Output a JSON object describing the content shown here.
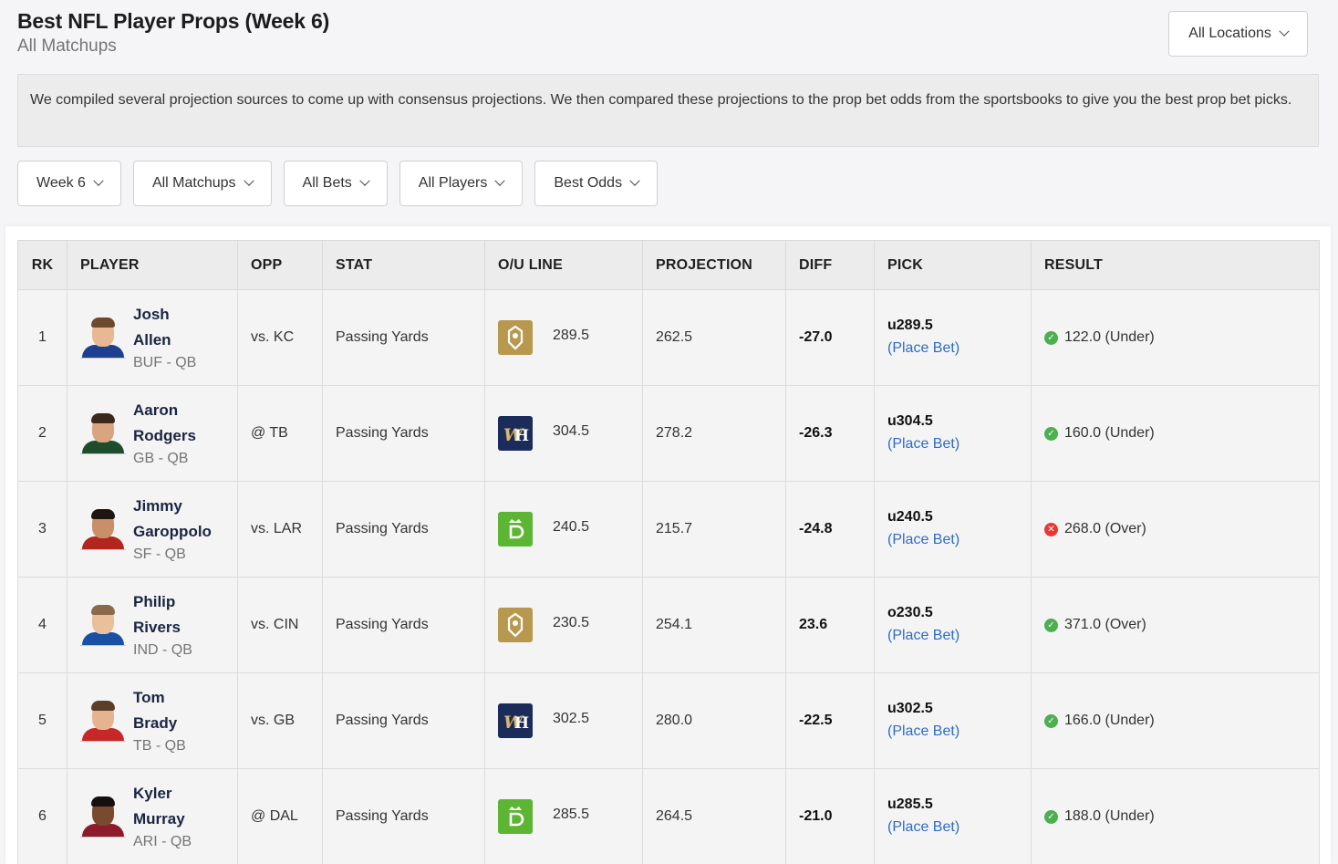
{
  "header": {
    "title": "Best NFL Player Props (Week 6)",
    "subtitle": "All Matchups",
    "location_label": "All Locations"
  },
  "description": "We compiled several projection sources to come up with consensus projections. We then compared these projections to the prop bet odds from the sportsbooks to give you the best prop bet picks.",
  "filters": {
    "week": "Week 6",
    "matchups": "All Matchups",
    "bets": "All Bets",
    "players": "All Players",
    "odds": "Best Odds"
  },
  "table": {
    "headers": {
      "rk": "RK",
      "player": "PLAYER",
      "opp": "OPP",
      "stat": "STAT",
      "ou": "O/U LINE",
      "projection": "PROJECTION",
      "diff": "DIFF",
      "pick": "PICK",
      "result": "RESULT"
    },
    "rows": [
      {
        "rk": "1",
        "first": "Josh",
        "last": "Allen",
        "team": "BUF - QB",
        "opp": "vs. KC",
        "stat": "Passing Yards",
        "book": "betmgm-logo",
        "line": "289.5",
        "projection": "262.5",
        "diff": "-27.0",
        "pick": "u289.5",
        "place": "(Place Bet)",
        "result": "122.0 (Under)",
        "result_status": "win"
      },
      {
        "rk": "2",
        "first": "Aaron",
        "last": "Rodgers",
        "team": "GB - QB",
        "opp": "@ TB",
        "stat": "Passing Yards",
        "book": "williamhill-logo",
        "line": "304.5",
        "projection": "278.2",
        "diff": "-26.3",
        "pick": "u304.5",
        "place": "(Place Bet)",
        "result": "160.0 (Under)",
        "result_status": "win"
      },
      {
        "rk": "3",
        "first": "Jimmy",
        "last": "Garoppolo",
        "team": "SF - QB",
        "opp": "vs. LAR",
        "stat": "Passing Yards",
        "book": "draftkings-logo",
        "line": "240.5",
        "projection": "215.7",
        "diff": "-24.8",
        "pick": "u240.5",
        "place": "(Place Bet)",
        "result": "268.0 (Over)",
        "result_status": "loss"
      },
      {
        "rk": "4",
        "first": "Philip",
        "last": "Rivers",
        "team": "IND - QB",
        "opp": "vs. CIN",
        "stat": "Passing Yards",
        "book": "betmgm-logo",
        "line": "230.5",
        "projection": "254.1",
        "diff": "23.6",
        "pick": "o230.5",
        "place": "(Place Bet)",
        "result": "371.0 (Over)",
        "result_status": "win"
      },
      {
        "rk": "5",
        "first": "Tom",
        "last": "Brady",
        "team": "TB - QB",
        "opp": "vs. GB",
        "stat": "Passing Yards",
        "book": "williamhill-logo",
        "line": "302.5",
        "projection": "280.0",
        "diff": "-22.5",
        "pick": "u302.5",
        "place": "(Place Bet)",
        "result": "166.0 (Under)",
        "result_status": "win"
      },
      {
        "rk": "6",
        "first": "Kyler",
        "last": "Murray",
        "team": "ARI - QB",
        "opp": "@ DAL",
        "stat": "Passing Yards",
        "book": "draftkings-logo",
        "line": "285.5",
        "projection": "264.5",
        "diff": "-21.0",
        "pick": "u285.5",
        "place": "(Place Bet)",
        "result": "188.0 (Under)",
        "result_status": "win"
      }
    ]
  },
  "colors": {
    "link": "#2f6cc4",
    "win": "#4caf50",
    "loss": "#e53935",
    "betmgm": "#b8974f",
    "williamhill": "#1b2b5a",
    "draftkings": "#5cb533"
  }
}
